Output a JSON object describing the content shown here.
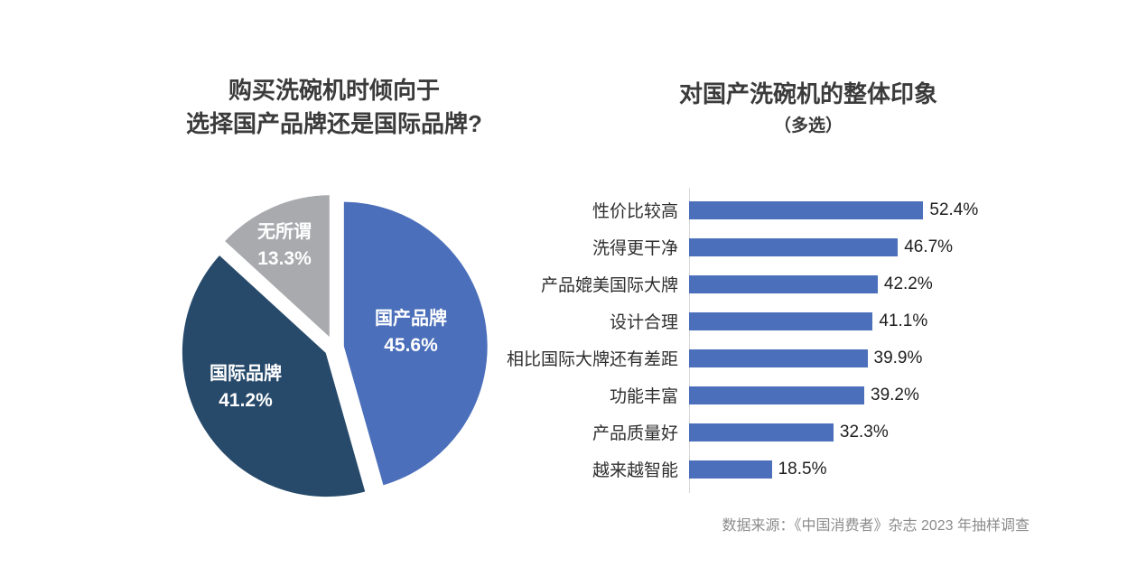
{
  "pie_chart": {
    "title_line1": "购买洗碗机时倾向于",
    "title_line2": "选择国产品牌还是国际品牌?",
    "slices": [
      {
        "label": "国产品牌",
        "value_display": "45.6%",
        "value": 45.6,
        "color": "#4b6fba"
      },
      {
        "label": "国际品牌",
        "value_display": "41.2%",
        "value": 41.2,
        "color": "#274a6b"
      },
      {
        "label": "无所谓",
        "value_display": "13.3%",
        "value": 13.3,
        "color": "#a8aaad"
      }
    ]
  },
  "bar_chart": {
    "title": "对国产洗碗机的整体印象",
    "subtitle": "（多选）",
    "bar_color": "#4b6fba",
    "bars": [
      {
        "label": "性价比较高",
        "value": 52.4,
        "display": "52.4%"
      },
      {
        "label": "洗得更干净",
        "value": 46.7,
        "display": "46.7%"
      },
      {
        "label": "产品媲美国际大牌",
        "value": 42.2,
        "display": "42.2%"
      },
      {
        "label": "设计合理",
        "value": 41.1,
        "display": "41.1%"
      },
      {
        "label": "相比国际大牌还有差距",
        "value": 39.9,
        "display": "39.9%"
      },
      {
        "label": "功能丰富",
        "value": 39.2,
        "display": "39.2%"
      },
      {
        "label": "产品质量好",
        "value": 32.3,
        "display": "32.3%"
      },
      {
        "label": "越来越智能",
        "value": 18.5,
        "display": "18.5%"
      }
    ]
  },
  "footer": {
    "source": "数据来源：《中国消费者》杂志 2023 年抽样调查"
  },
  "chart_data": [
    {
      "type": "pie",
      "title": "购买洗碗机时倾向于选择国产品牌还是国际品牌?",
      "labels": [
        "国产品牌",
        "国际品牌",
        "无所谓"
      ],
      "values": [
        45.6,
        41.2,
        13.3
      ],
      "unit": "%",
      "colors": [
        "#4b6fba",
        "#274a6b",
        "#a8aaad"
      ],
      "start_angle": "12-o'clock, clockwise",
      "style": "exploded slices with white gaps, labels inside slices"
    },
    {
      "type": "bar",
      "orientation": "horizontal",
      "title": "对国产洗碗机的整体印象（多选）",
      "categories": [
        "性价比较高",
        "洗得更干净",
        "产品媲美国际大牌",
        "设计合理",
        "相比国际大牌还有差距",
        "功能丰富",
        "产品质量好",
        "越来越智能"
      ],
      "values": [
        52.4,
        46.7,
        42.2,
        41.1,
        39.9,
        39.2,
        32.3,
        18.5
      ],
      "unit": "%",
      "xlim": [
        0,
        55
      ],
      "bar_color": "#4b6fba",
      "grid": false,
      "value_labels": "at bar ends",
      "legend": "none"
    }
  ]
}
